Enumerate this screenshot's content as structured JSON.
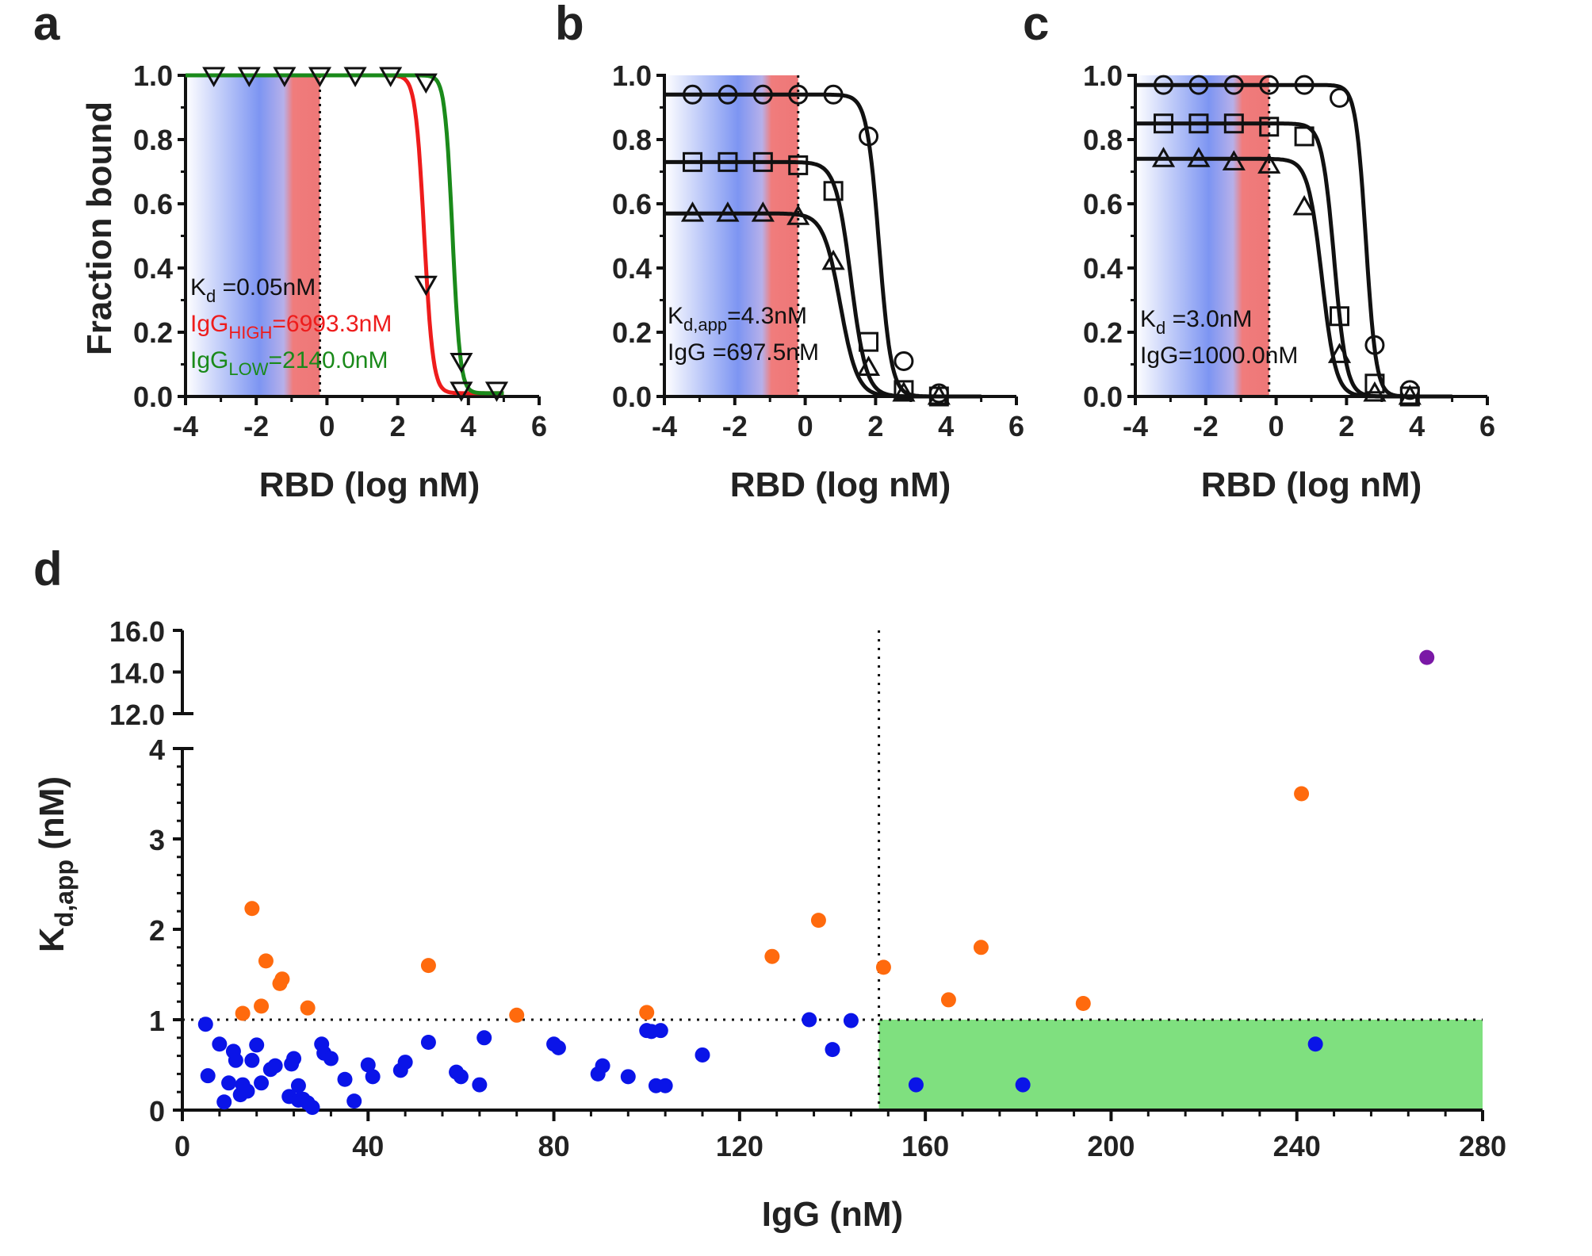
{
  "figure": {
    "panel_labels": [
      "a",
      "b",
      "c",
      "d"
    ]
  },
  "chart_data": [
    {
      "id": "a",
      "type": "line",
      "xlabel": "RBD (log nM)",
      "ylabel": "Fraction bound",
      "xlim": [
        -4,
        6
      ],
      "ylim": [
        0,
        1.0
      ],
      "xticks": [
        "-4",
        "-2",
        "0",
        "2",
        "4",
        "6"
      ],
      "yticks": [
        "0.0",
        "0.2",
        "0.4",
        "0.6",
        "0.8",
        "1.0"
      ],
      "shaded_region": [
        -4,
        -0.2
      ],
      "annotations": [
        {
          "base": "K",
          "sub": "d",
          "rest": "      =0.05nM",
          "color": "#111111"
        },
        {
          "base": "IgG",
          "sub": "HIGH",
          "rest": "=6993.3nM",
          "color": "#ee1c1c"
        },
        {
          "base": "IgG",
          "sub": "LOW",
          "rest": "=2140.0nM",
          "color": "#1a8a1a"
        }
      ],
      "series": [
        {
          "name": "IgG_HIGH fit",
          "color": "#ee1c1c",
          "top": 1.0,
          "bottom": 0.01,
          "ec50": 2.75,
          "hill": 3.5
        },
        {
          "name": "IgG_LOW fit",
          "color": "#1a8a1a",
          "top": 1.0,
          "bottom": 0.01,
          "ec50": 3.55,
          "hill": 4.0
        }
      ],
      "points": [
        {
          "marker": "triangle-down",
          "x": [
            -3.2,
            -2.2,
            -1.2,
            -0.2,
            0.8,
            1.8,
            2.8,
            2.8,
            3.8,
            3.8,
            4.8
          ],
          "y": [
            1.0,
            1.0,
            1.0,
            1.0,
            1.0,
            1.0,
            0.98,
            0.35,
            0.11,
            0.02,
            0.02
          ]
        }
      ]
    },
    {
      "id": "b",
      "type": "line",
      "xlabel": "RBD (log nM)",
      "xlim": [
        -4,
        6
      ],
      "ylim": [
        0,
        1.0
      ],
      "xticks": [
        "-4",
        "-2",
        "0",
        "2",
        "4",
        "6"
      ],
      "yticks": [
        "0.0",
        "0.2",
        "0.4",
        "0.6",
        "0.8",
        "1.0"
      ],
      "shaded_region": [
        -4,
        -0.2
      ],
      "annotations": [
        {
          "base": "K",
          "sub": "d,app",
          "rest": "=4.3nM",
          "color": "#111111"
        },
        {
          "base": "IgG",
          "sub": "",
          "rest": "    =697.5nM",
          "color": "#111111"
        }
      ],
      "series": [
        {
          "name": "circle fit",
          "color": "#111111",
          "top": 0.94,
          "bottom": 0.0,
          "ec50": 2.1,
          "hill": 2.5
        },
        {
          "name": "square fit",
          "color": "#111111",
          "top": 0.73,
          "bottom": 0.0,
          "ec50": 1.3,
          "hill": 2.0
        },
        {
          "name": "triangle fit",
          "color": "#111111",
          "top": 0.57,
          "bottom": 0.0,
          "ec50": 1.0,
          "hill": 1.8
        }
      ],
      "points": [
        {
          "marker": "circle",
          "x": [
            -3.2,
            -2.2,
            -1.2,
            -0.2,
            0.8,
            1.8,
            2.8,
            3.8
          ],
          "y": [
            0.94,
            0.94,
            0.94,
            0.94,
            0.94,
            0.81,
            0.11,
            0.01
          ]
        },
        {
          "marker": "square",
          "x": [
            -3.2,
            -2.2,
            -1.2,
            -0.2,
            0.8,
            1.8,
            2.8,
            3.8
          ],
          "y": [
            0.73,
            0.73,
            0.73,
            0.72,
            0.64,
            0.17,
            0.02,
            0.0
          ]
        },
        {
          "marker": "triangle",
          "x": [
            -3.2,
            -2.2,
            -1.2,
            -0.2,
            0.8,
            1.8,
            2.8,
            3.8
          ],
          "y": [
            0.57,
            0.57,
            0.57,
            0.56,
            0.42,
            0.09,
            0.01,
            0.0
          ]
        }
      ]
    },
    {
      "id": "c",
      "type": "line",
      "xlabel": "RBD (log nM)",
      "xlim": [
        -4,
        6
      ],
      "ylim": [
        0,
        1.0
      ],
      "xticks": [
        "-4",
        "-2",
        "0",
        "2",
        "4",
        "6"
      ],
      "yticks": [
        "0.0",
        "0.2",
        "0.4",
        "0.6",
        "0.8",
        "1.0"
      ],
      "shaded_region": [
        -4,
        -0.2
      ],
      "annotations": [
        {
          "base": "K",
          "sub": "d",
          "rest": " =3.0nM",
          "color": "#111111"
        },
        {
          "base": "IgG=1000.0nM",
          "sub": "",
          "rest": "",
          "color": "#111111"
        }
      ],
      "series": [
        {
          "name": "circle fit",
          "color": "#111111",
          "top": 0.97,
          "bottom": 0.0,
          "ec50": 2.55,
          "hill": 3.0
        },
        {
          "name": "square fit",
          "color": "#111111",
          "top": 0.85,
          "bottom": 0.0,
          "ec50": 1.65,
          "hill": 2.5
        },
        {
          "name": "triangle fit",
          "color": "#111111",
          "top": 0.74,
          "bottom": 0.0,
          "ec50": 1.3,
          "hill": 2.2
        }
      ],
      "points": [
        {
          "marker": "circle",
          "x": [
            -3.2,
            -2.2,
            -1.2,
            -0.2,
            0.8,
            1.8,
            2.8,
            3.8
          ],
          "y": [
            0.97,
            0.97,
            0.97,
            0.97,
            0.97,
            0.93,
            0.16,
            0.02
          ]
        },
        {
          "marker": "square",
          "x": [
            -3.2,
            -2.2,
            -1.2,
            -0.2,
            0.8,
            1.8,
            2.8,
            3.8
          ],
          "y": [
            0.85,
            0.85,
            0.85,
            0.84,
            0.81,
            0.25,
            0.04,
            0.0
          ]
        },
        {
          "marker": "triangle",
          "x": [
            -3.2,
            -2.2,
            -1.2,
            -0.2,
            0.8,
            1.8,
            2.8,
            3.8
          ],
          "y": [
            0.74,
            0.74,
            0.73,
            0.72,
            0.59,
            0.13,
            0.01,
            0.0
          ]
        }
      ]
    },
    {
      "id": "d",
      "type": "scatter",
      "xlabel": "IgG (nM)",
      "ylabel_base": "K",
      "ylabel_sub": "d,app",
      "ylabel_rest": " (nM)",
      "xlim": [
        0,
        280
      ],
      "ylim_lower": [
        0,
        4
      ],
      "ylim_upper": [
        12,
        16
      ],
      "xticks": [
        "0",
        "40",
        "80",
        "120",
        "160",
        "200",
        "240",
        "280"
      ],
      "yticks_lower": [
        "0",
        "1",
        "2",
        "3",
        "4"
      ],
      "yticks_upper": [
        "12.0",
        "14.0",
        "16.0"
      ],
      "threshold_x": 150,
      "threshold_y": 1,
      "green_region": {
        "x": [
          150,
          280
        ],
        "y": [
          0,
          1
        ]
      },
      "series": [
        {
          "name": "blue",
          "color": "#0a14e8",
          "x": [
            5,
            5.5,
            8,
            9,
            10,
            11,
            11.5,
            12.5,
            13,
            14,
            15,
            16,
            17,
            19,
            20,
            23,
            23.5,
            24,
            25,
            25,
            26,
            27,
            28,
            30,
            30.5,
            32,
            35,
            37,
            40,
            41,
            47,
            48,
            53,
            59,
            60,
            64,
            65,
            80,
            81,
            89.5,
            90.5,
            96,
            100,
            101,
            102,
            103,
            104,
            112,
            135,
            140,
            144,
            158,
            181,
            244
          ],
          "y": [
            0.95,
            0.38,
            0.73,
            0.09,
            0.3,
            0.65,
            0.55,
            0.17,
            0.28,
            0.21,
            0.55,
            0.72,
            0.3,
            0.45,
            0.49,
            0.15,
            0.51,
            0.57,
            0.11,
            0.27,
            0.12,
            0.08,
            0.03,
            0.73,
            0.63,
            0.57,
            0.34,
            0.1,
            0.5,
            0.37,
            0.44,
            0.53,
            0.75,
            0.42,
            0.37,
            0.28,
            0.8,
            0.73,
            0.69,
            0.4,
            0.49,
            0.37,
            0.88,
            0.87,
            0.27,
            0.88,
            0.27,
            0.61,
            1.0,
            0.67,
            0.99,
            0.28,
            0.28,
            0.73
          ]
        },
        {
          "name": "orange",
          "color": "#ff6a0d",
          "x": [
            13,
            15,
            17,
            18,
            21,
            21.5,
            27,
            53,
            72,
            100,
            127,
            137,
            151,
            165,
            172,
            194,
            241
          ],
          "y": [
            1.07,
            2.23,
            1.15,
            1.65,
            1.4,
            1.45,
            1.13,
            1.6,
            1.05,
            1.08,
            1.7,
            2.1,
            1.58,
            1.22,
            1.8,
            1.18,
            3.5
          ]
        },
        {
          "name": "purple",
          "color": "#7a18a6",
          "x": [
            268
          ],
          "y": [
            14.7
          ]
        }
      ]
    }
  ]
}
